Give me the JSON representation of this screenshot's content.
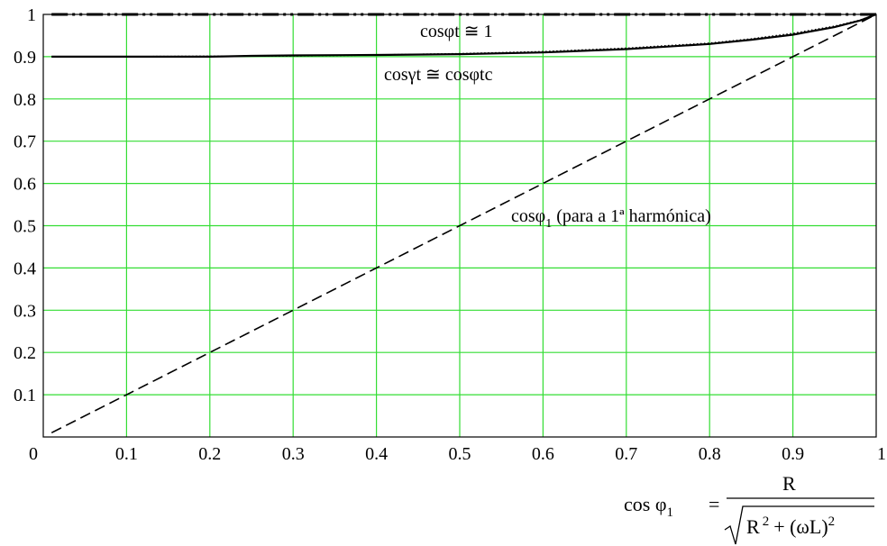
{
  "chart_data": {
    "type": "line",
    "xlim": [
      0,
      1
    ],
    "ylim": [
      0,
      1
    ],
    "grid": true,
    "x_ticks": [
      "0",
      "0.1",
      "0.2",
      "0.3",
      "0.4",
      "0.5",
      "0.6",
      "0.7",
      "0.8",
      "0.9",
      "1"
    ],
    "y_ticks": [
      "0.1",
      "0.2",
      "0.3",
      "0.4",
      "0.5",
      "0.6",
      "0.7",
      "0.8",
      "0.9",
      "1"
    ],
    "series": [
      {
        "style": "dash-dot",
        "x": [
          0.01,
          0.25,
          0.5,
          0.75,
          1.0
        ],
        "y": [
          1.0,
          1.0,
          1.0,
          1.0,
          1.0
        ]
      },
      {
        "style": "solid",
        "x": [
          0.01,
          0.1,
          0.2,
          0.25,
          0.3,
          0.4,
          0.5,
          0.6,
          0.7,
          0.8,
          0.85,
          0.9,
          0.95,
          0.98,
          1.0
        ],
        "y": [
          0.9,
          0.9,
          0.9,
          0.902,
          0.903,
          0.904,
          0.906,
          0.91,
          0.918,
          0.93,
          0.94,
          0.952,
          0.97,
          0.985,
          1.0
        ]
      },
      {
        "style": "dotted",
        "x": [
          0.01,
          0.1,
          0.2,
          0.3,
          0.4,
          0.5,
          0.6,
          0.7,
          0.8,
          0.85,
          0.9,
          0.95,
          0.98,
          1.0
        ],
        "y": [
          0.9,
          0.9,
          0.901,
          0.902,
          0.904,
          0.907,
          0.912,
          0.92,
          0.932,
          0.942,
          0.955,
          0.972,
          0.986,
          1.0
        ]
      },
      {
        "style": "dashed",
        "x": [
          0.01,
          0.1,
          0.2,
          0.3,
          0.4,
          0.5,
          0.6,
          0.7,
          0.8,
          0.9,
          0.95,
          1.0
        ],
        "y": [
          0.01,
          0.1,
          0.2,
          0.3,
          0.4,
          0.5,
          0.6,
          0.7,
          0.8,
          0.9,
          0.95,
          1.0
        ]
      }
    ],
    "annotations": {
      "top": "cosφt ≅ 1",
      "middle": "cosγt ≅ cosφtc",
      "diagonal_main": "cosφ",
      "diagonal_sub": "1",
      "diagonal_rest": " (para a 1ª harmónica)"
    },
    "formula": {
      "lhs": "cos φ",
      "lhs_sub": "1",
      "equals": "=",
      "numerator": "R",
      "den_r": "R",
      "den_r_sup": "2",
      "den_plus": "+ (ωL)",
      "den_sup": "2"
    }
  }
}
